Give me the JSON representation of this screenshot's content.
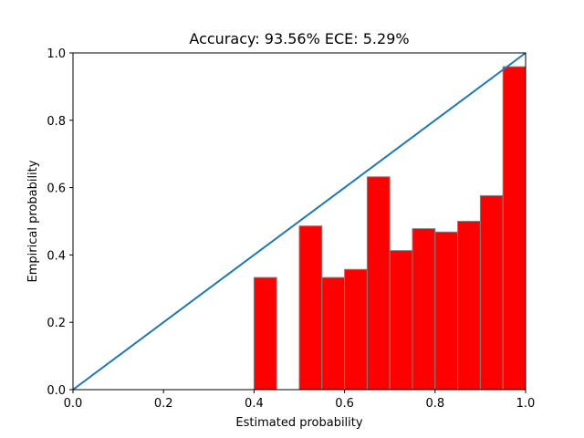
{
  "chart_data": {
    "type": "bar",
    "title": "Accuracy: 93.56% ECE: 5.29%",
    "xlabel": "Estimated probability",
    "ylabel": "Empirical probability",
    "xlim": [
      0.0,
      1.0
    ],
    "ylim": [
      0.0,
      1.0
    ],
    "xticks": [
      "0.0",
      "0.2",
      "0.4",
      "0.6",
      "0.8",
      "1.0"
    ],
    "yticks": [
      "0.0",
      "0.2",
      "0.4",
      "0.6",
      "0.8",
      "1.0"
    ],
    "grid": false,
    "bar_color": "#ff0000",
    "bar_edge_color": "#808080",
    "line_color": "#1f77b4",
    "reference_line": {
      "x": [
        0.0,
        1.0
      ],
      "y": [
        0.0,
        1.0
      ]
    },
    "bins": [
      {
        "x0": 0.4,
        "x1": 0.45,
        "value": 0.333
      },
      {
        "x0": 0.5,
        "x1": 0.55,
        "value": 0.486
      },
      {
        "x0": 0.55,
        "x1": 0.6,
        "value": 0.333
      },
      {
        "x0": 0.6,
        "x1": 0.65,
        "value": 0.357
      },
      {
        "x0": 0.65,
        "x1": 0.7,
        "value": 0.632
      },
      {
        "x0": 0.7,
        "x1": 0.75,
        "value": 0.413
      },
      {
        "x0": 0.75,
        "x1": 0.8,
        "value": 0.478
      },
      {
        "x0": 0.8,
        "x1": 0.85,
        "value": 0.468
      },
      {
        "x0": 0.85,
        "x1": 0.9,
        "value": 0.5
      },
      {
        "x0": 0.9,
        "x1": 0.95,
        "value": 0.576
      },
      {
        "x0": 0.95,
        "x1": 1.0,
        "value": 0.959
      }
    ]
  }
}
